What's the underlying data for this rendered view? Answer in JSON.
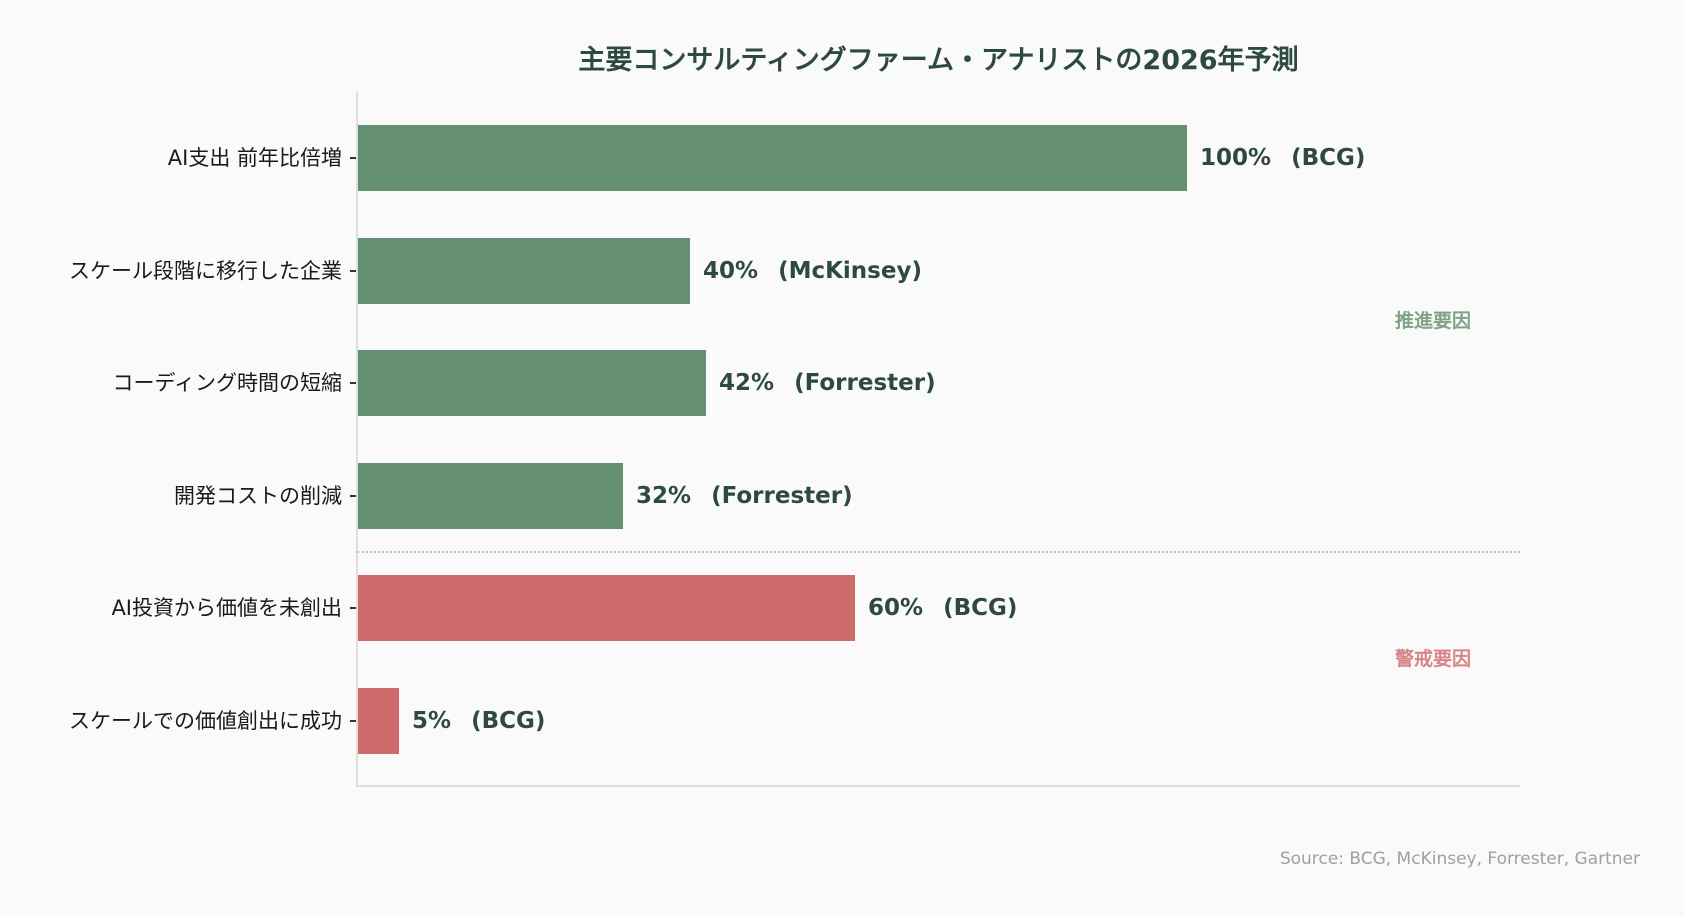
{
  "chart_data": {
    "type": "bar",
    "orientation": "horizontal",
    "title": "主要コンサルティングファーム・アナリストの2026年予測",
    "xlabel": "",
    "ylabel": "",
    "xlim": [
      0,
      100
    ],
    "grid": false,
    "categories": [
      "AI支出 前年比倍増",
      "スケール段階に移行した企業",
      "コーディング時間の短縮",
      "開発コストの削減",
      "AI投資から価値を未創出",
      "スケールでの価値創出に成功"
    ],
    "values": [
      100,
      40,
      42,
      32,
      60,
      5
    ],
    "sources": [
      "BCG",
      "McKinsey",
      "Forrester",
      "Forrester",
      "BCG",
      "BCG"
    ],
    "groups": [
      "推進要因",
      "推進要因",
      "推進要因",
      "推進要因",
      "警戒要因",
      "警戒要因"
    ],
    "group_colors": {
      "推進要因": "#648f70",
      "警戒要因": "#cd6a6a"
    },
    "annotations": [
      "推進要因",
      "警戒要因",
      "Source: BCG, McKinsey, Forrester, Gartner"
    ]
  },
  "title": "主要コンサルティングファーム・アナリストの2026年予測",
  "rows": [
    {
      "label": "AI支出 前年比倍増",
      "value": 100,
      "value_text": "100%",
      "source_text": "(BCG)",
      "color": "#648f70"
    },
    {
      "label": "スケール段階に移行した企業",
      "value": 40,
      "value_text": "40%",
      "source_text": "(McKinsey)",
      "color": "#648f70"
    },
    {
      "label": "コーディング時間の短縮",
      "value": 42,
      "value_text": "42%",
      "source_text": "(Forrester)",
      "color": "#648f70"
    },
    {
      "label": "開発コストの削減",
      "value": 32,
      "value_text": "32%",
      "source_text": "(Forrester)",
      "color": "#648f70"
    },
    {
      "label": "AI投資から価値を未創出",
      "value": 60,
      "value_text": "60%",
      "source_text": "(BCG)",
      "color": "#cd6a6a"
    },
    {
      "label": "スケールでの価値創出に成功",
      "value": 5,
      "value_text": "5%",
      "source_text": "(BCG)",
      "color": "#cd6a6a"
    }
  ],
  "groups": {
    "positive": {
      "label": "推進要因",
      "color": "#7fa38a"
    },
    "negative": {
      "label": "警戒要因",
      "color": "#d98585"
    }
  },
  "footer": {
    "source": "Source: BCG, McKinsey, Forrester, Gartner"
  }
}
